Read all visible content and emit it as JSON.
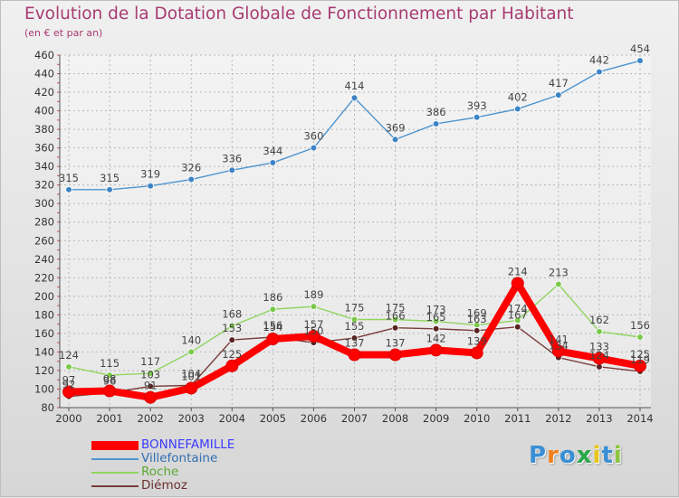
{
  "title": "Evolution de la Dotation Globale de Fonctionnement par Habitant",
  "subtitle": "(en € et par an)",
  "logo": {
    "letters": [
      "P",
      "r",
      "o",
      "x",
      "i",
      "t",
      "i"
    ],
    "colors": [
      "#3a8fd4",
      "#f07f1a",
      "#3a8fd4",
      "#2aa84a",
      "#e8c619",
      "#3a8fd4",
      "#8cc63f"
    ]
  },
  "chart_data": {
    "type": "line",
    "title": "Evolution de la Dotation Globale de Fonctionnement par Habitant",
    "subtitle": "(en € et par an)",
    "xlabel": "",
    "ylabel": "",
    "x": [
      "2000",
      "2001",
      "2002",
      "2003",
      "2004",
      "2005",
      "2006",
      "2007",
      "2008",
      "2009",
      "2010",
      "2011",
      "2012",
      "2013",
      "2014"
    ],
    "ylim": [
      80,
      460
    ],
    "yticks": [
      80,
      100,
      120,
      140,
      160,
      180,
      200,
      220,
      240,
      260,
      280,
      300,
      320,
      340,
      360,
      380,
      400,
      420,
      440,
      460
    ],
    "grid": true,
    "legend_position": "bottom-left",
    "series": [
      {
        "name": "Villefontaine",
        "color": "#4d94cf",
        "marker": "#3d84c6",
        "bold": false,
        "values": [
          315,
          315,
          319,
          326,
          336,
          344,
          360,
          414,
          369,
          386,
          393,
          402,
          417,
          442,
          454
        ],
        "labels": [
          "315",
          "315",
          "319",
          "326",
          "336",
          "344",
          "360",
          "414",
          "369",
          "386",
          "393",
          "402",
          "417",
          "442",
          "454"
        ]
      },
      {
        "name": "Roche",
        "color": "#8fd460",
        "marker": "#7bc94a",
        "bold": false,
        "values": [
          124,
          115,
          117,
          140,
          168,
          186,
          189,
          175,
          175,
          173,
          169,
          174,
          213,
          162,
          156
        ],
        "labels": [
          "124",
          "115",
          "117",
          "140",
          "168",
          "186",
          "189",
          "175",
          "175",
          "173",
          "169",
          "174",
          "213",
          "162",
          "156"
        ]
      },
      {
        "name": "Diémoz",
        "color": "#7a3c3c",
        "marker": "#5a2323",
        "bold": false,
        "values": [
          92,
          96,
          103,
          104,
          153,
          156,
          150,
          155,
          166,
          165,
          163,
          167,
          134,
          124,
          119
        ],
        "labels": [
          "92",
          "96",
          "103",
          "104",
          "153",
          "156",
          "150",
          "155",
          "166",
          "165",
          "163",
          "167",
          "134",
          "124",
          "119"
        ]
      },
      {
        "name": "BONNEFAMILLE",
        "color": "#ff0000",
        "marker": "#ff0000",
        "bold": true,
        "values": [
          97,
          98,
          91,
          101,
          125,
          154,
          157,
          137,
          137,
          142,
          139,
          214,
          141,
          133,
          125
        ],
        "labels": [
          "97",
          "98",
          "91",
          "101",
          "125",
          "154",
          "157",
          "137",
          "137",
          "142",
          "139",
          "214",
          "141",
          "133",
          "125"
        ]
      }
    ],
    "legend": [
      {
        "name": "BONNEFAMILLE",
        "color": "#ff0000",
        "text_color": "#3b3bff",
        "bold": true
      },
      {
        "name": "Villefontaine",
        "color": "#4d94cf",
        "text_color": "#2f6fb3",
        "bold": false
      },
      {
        "name": "Roche",
        "color": "#8fd460",
        "text_color": "#5aa832",
        "bold": false
      },
      {
        "name": "Diémoz",
        "color": "#7a3c3c",
        "text_color": "#6b2f2f",
        "bold": false
      }
    ]
  }
}
